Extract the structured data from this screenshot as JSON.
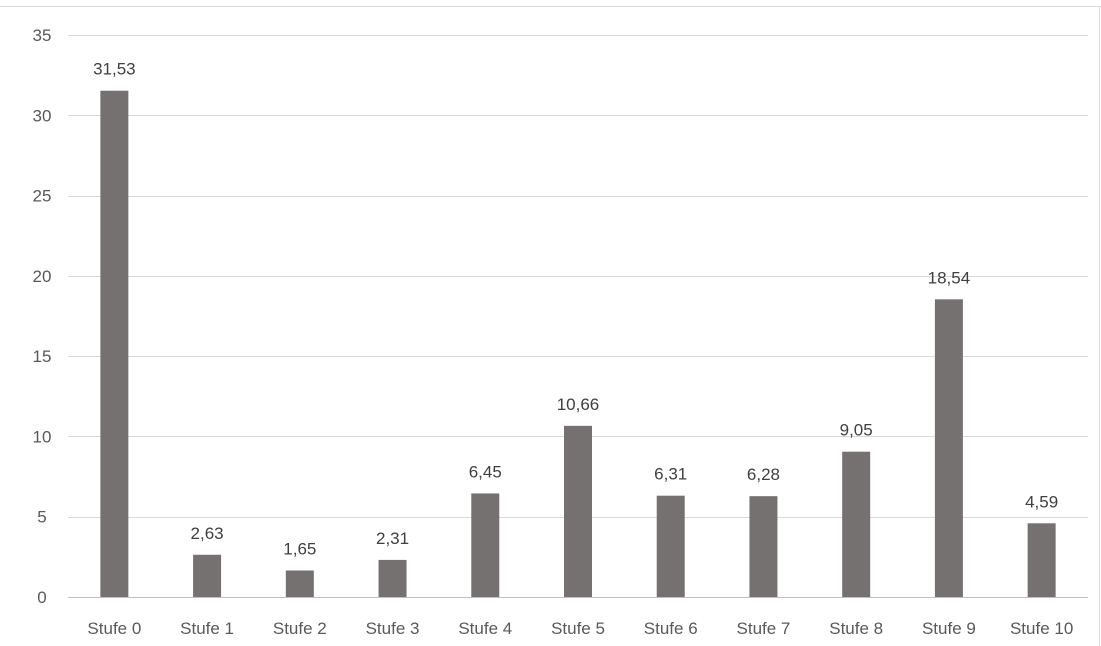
{
  "chart_data": {
    "type": "bar",
    "categories": [
      "Stufe 0",
      "Stufe 1",
      "Stufe 2",
      "Stufe 3",
      "Stufe 4",
      "Stufe 5",
      "Stufe 6",
      "Stufe 7",
      "Stufe 8",
      "Stufe 9",
      "Stufe 10"
    ],
    "values": [
      31.53,
      2.63,
      1.65,
      2.31,
      6.45,
      10.66,
      6.31,
      6.28,
      9.05,
      18.54,
      4.59
    ],
    "value_labels": [
      "31,53",
      "2,63",
      "1,65",
      "2,31",
      "6,45",
      "10,66",
      "6,31",
      "6,28",
      "9,05",
      "18,54",
      "4,59"
    ],
    "y_ticks": [
      0,
      5,
      10,
      15,
      20,
      25,
      30,
      35
    ],
    "y_tick_labels": [
      "0",
      "5",
      "10",
      "15",
      "20",
      "25",
      "30",
      "35"
    ],
    "ylim": [
      0,
      35
    ],
    "title": "",
    "xlabel": "",
    "ylabel": "",
    "grid": "horizontal",
    "legend": "none",
    "colors": {
      "bar": "#767171",
      "grid": "#d9d9d9",
      "axis": "#bfbfbf",
      "text": "#595959"
    }
  }
}
